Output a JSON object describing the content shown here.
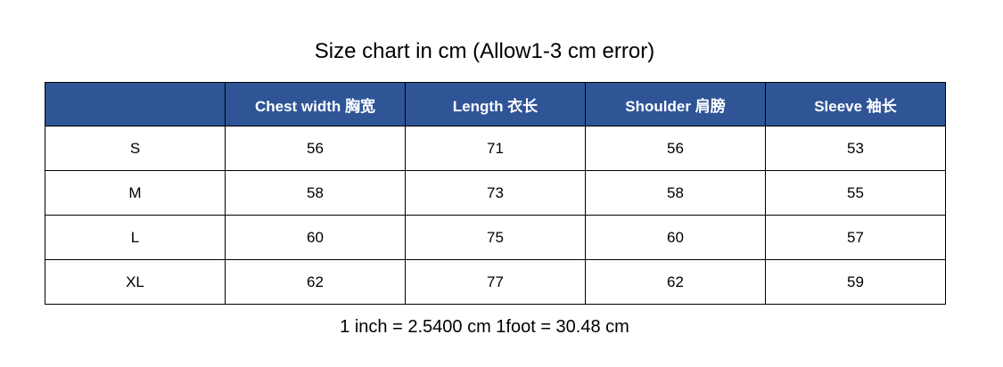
{
  "title": "Size chart in cm (Allow1-3 cm error)",
  "header_color": "#2F5597",
  "columns": [
    "",
    "Chest width  胸宽",
    "Length  衣长",
    "Shoulder  肩膀",
    "Sleeve  袖长"
  ],
  "rows": [
    [
      "S",
      "56",
      "71",
      "56",
      "53"
    ],
    [
      "M",
      "58",
      "73",
      "58",
      "55"
    ],
    [
      "L",
      "60",
      "75",
      "60",
      "57"
    ],
    [
      "XL",
      "62",
      "77",
      "62",
      "59"
    ]
  ],
  "footer": "1 inch = 2.5400 cm 1foot = 30.48 cm"
}
